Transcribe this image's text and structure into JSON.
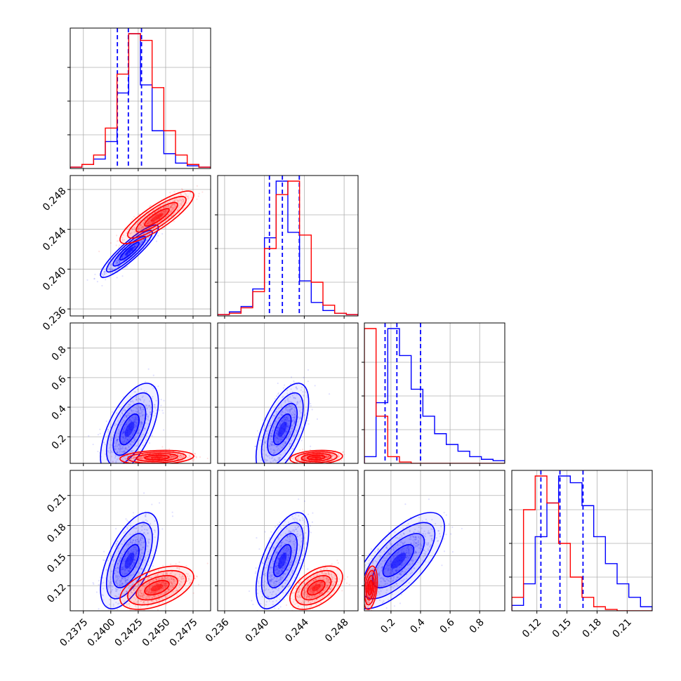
{
  "chart_data": {
    "type": "corner",
    "grid": true,
    "colors": {
      "series_a": "#0000ff",
      "series_b": "#ff0000"
    },
    "parameters": [
      {
        "range": [
          0.2363,
          0.2491
        ],
        "ticks": [
          0.2375,
          0.24,
          0.2425,
          0.245,
          0.2475
        ],
        "tick_labels": [
          "0.2375",
          "0.2400",
          "0.2425",
          "0.2450",
          "0.2475"
        ]
      },
      {
        "range": [
          0.2353,
          0.2494
        ],
        "ticks": [
          0.236,
          0.24,
          0.244,
          0.248
        ],
        "tick_labels": [
          "0.236",
          "0.240",
          "0.244",
          "0.248"
        ]
      },
      {
        "range": [
          0.02,
          0.97
        ],
        "ticks": [
          0.2,
          0.4,
          0.6,
          0.8
        ],
        "tick_labels": [
          "0.2",
          "0.4",
          "0.6",
          "0.8"
        ]
      },
      {
        "range": [
          0.095,
          0.235
        ],
        "ticks": [
          0.12,
          0.15,
          0.18,
          0.21
        ],
        "tick_labels": [
          "0.12",
          "0.15",
          "0.18",
          "0.21"
        ]
      }
    ],
    "series": [
      {
        "color": "#0000ff",
        "mean": [
          0.2417,
          0.2418,
          0.25,
          0.145
        ],
        "sd": [
          0.0011,
          0.0011,
          0.13,
          0.02
        ],
        "corr": [
          [
            1,
            0.9,
            0.6,
            0.6
          ],
          [
            0.9,
            1,
            0.6,
            0.6
          ],
          [
            0.6,
            0.6,
            1,
            0.7
          ],
          [
            0.6,
            0.6,
            0.7,
            1
          ]
        ],
        "quantiles": [
          [
            0.2406,
            0.2416,
            0.2428
          ],
          [
            0.2405,
            0.2418,
            0.2435
          ],
          [
            0.16,
            0.24,
            0.4
          ],
          [
            0.124,
            0.143,
            0.166
          ]
        ],
        "hist": [
          [
            0.01,
            0.03,
            0.07,
            0.2,
            0.56,
            1.0,
            0.62,
            0.28,
            0.11,
            0.04,
            0.02,
            0.01
          ],
          [
            0.01,
            0.03,
            0.07,
            0.2,
            0.58,
            1.0,
            0.62,
            0.26,
            0.1,
            0.04,
            0.02,
            0.01
          ],
          [
            0.05,
            0.45,
            1.0,
            0.8,
            0.55,
            0.35,
            0.22,
            0.14,
            0.09,
            0.05,
            0.03,
            0.02
          ],
          [
            0.04,
            0.2,
            0.55,
            0.8,
            1.0,
            0.95,
            0.78,
            0.55,
            0.35,
            0.2,
            0.1,
            0.03
          ]
        ]
      },
      {
        "color": "#ff0000",
        "mean": [
          0.2442,
          0.2452,
          0.06,
          0.118
        ],
        "sd": [
          0.0014,
          0.0011,
          0.02,
          0.009
        ],
        "corr": [
          [
            1,
            0.85,
            0.2,
            0.5
          ],
          [
            0.85,
            1,
            0.2,
            0.5
          ],
          [
            0.2,
            0.2,
            1,
            0.3
          ],
          [
            0.5,
            0.5,
            0.3,
            1
          ]
        ],
        "quantiles": null,
        "hist": [
          [
            0.01,
            0.03,
            0.1,
            0.3,
            0.7,
            1.0,
            0.95,
            0.6,
            0.28,
            0.1,
            0.03,
            0.01
          ],
          [
            0.01,
            0.02,
            0.06,
            0.18,
            0.5,
            0.9,
            1.0,
            0.6,
            0.25,
            0.08,
            0.02,
            0.01
          ],
          [
            1.0,
            0.35,
            0.05,
            0.01,
            0,
            0,
            0,
            0,
            0,
            0,
            0,
            0
          ],
          [
            0.1,
            0.75,
            1.0,
            0.8,
            0.5,
            0.25,
            0.1,
            0.03,
            0.01,
            0,
            0,
            0
          ]
        ]
      }
    ]
  }
}
